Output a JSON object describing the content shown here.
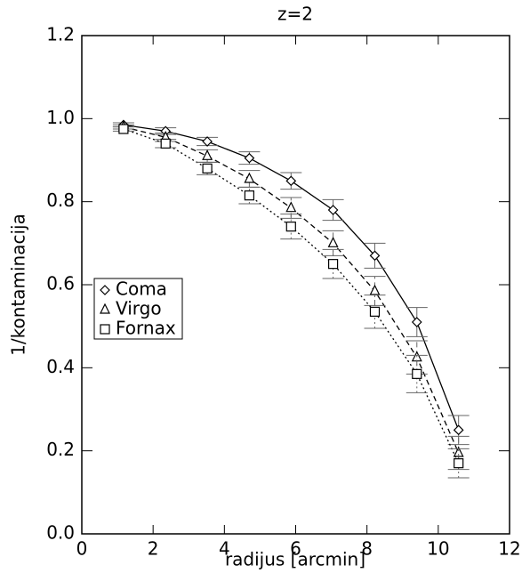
{
  "chart_data": {
    "type": "line",
    "title": "z=2",
    "x_label": "radijus [arcmin]",
    "y_label": "1/kontaminacija",
    "x": [
      1.17,
      2.35,
      3.52,
      4.7,
      5.87,
      7.05,
      8.22,
      9.4,
      10.57
    ],
    "series": [
      {
        "name": "Coma",
        "color": "#000000",
        "marker": "diamond",
        "dash": "solid",
        "values": [
          0.985,
          0.97,
          0.945,
          0.905,
          0.85,
          0.78,
          0.67,
          0.51,
          0.25
        ],
        "errors": [
          0.005,
          0.008,
          0.01,
          0.015,
          0.02,
          0.025,
          0.03,
          0.035,
          0.035
        ]
      },
      {
        "name": "Virgo",
        "color": "#000000",
        "marker": "triangle",
        "dash": "dashed",
        "values": [
          0.98,
          0.955,
          0.91,
          0.855,
          0.785,
          0.7,
          0.585,
          0.425,
          0.195
        ],
        "errors": [
          0.005,
          0.01,
          0.015,
          0.02,
          0.025,
          0.03,
          0.035,
          0.04,
          0.04
        ]
      },
      {
        "name": "Fornax",
        "color": "#000000",
        "marker": "square",
        "dash": "dotted",
        "values": [
          0.975,
          0.94,
          0.88,
          0.815,
          0.74,
          0.65,
          0.535,
          0.385,
          0.17
        ],
        "errors": [
          0.005,
          0.01,
          0.015,
          0.02,
          0.03,
          0.035,
          0.04,
          0.045,
          0.035
        ]
      }
    ],
    "xlim": [
      0,
      12
    ],
    "xticks": [
      0,
      2,
      4,
      6,
      8,
      10,
      12
    ],
    "ylim": [
      0,
      1.2
    ],
    "yticks": [
      {
        "value": 0,
        "label": "0.0"
      },
      0.2,
      0.4,
      0.6,
      0.8,
      {
        "value": 1,
        "label": "1.0"
      },
      1.2
    ],
    "legend": "middle-left"
  }
}
